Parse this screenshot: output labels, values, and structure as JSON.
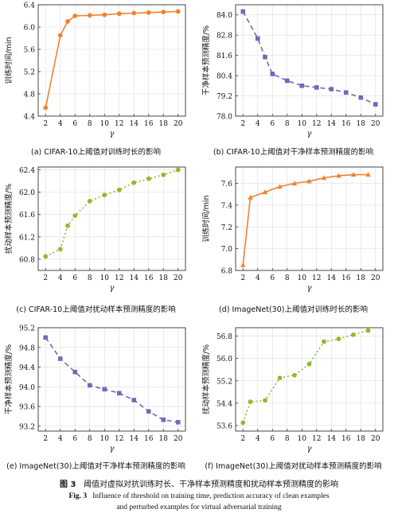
{
  "caption": {
    "cn_label": "图 3",
    "cn_text": "阈值对虚拟对抗训练时长、干净样本预测精度和扰动样本预测精度的影响",
    "en_label": "Fig. 3",
    "en_line1": "Influence of threshold on training time, prediction accuracy of clean examples",
    "en_line2": "and perturbed examples for virtual adversarial training"
  },
  "colors": {
    "orange": "#F0822F",
    "purple": "#6D6BB8",
    "green": "#8DBB2C",
    "grid": "#dddddd",
    "axis": "#333333"
  },
  "chart_data": [
    {
      "id": "a",
      "type": "line",
      "style": "solid",
      "marker": "circle",
      "color": "orange",
      "caption": "(a) CIFAR-10上阈值对训练时长的影响",
      "xlabel": "γ",
      "ylabel": "训练时间/min",
      "x": [
        2,
        4,
        5,
        6,
        8,
        10,
        12,
        14,
        16,
        18,
        20
      ],
      "y": [
        4.55,
        5.85,
        6.1,
        6.2,
        6.21,
        6.22,
        6.24,
        6.25,
        6.26,
        6.27,
        6.28
      ],
      "xlim": [
        1,
        21
      ],
      "ylim": [
        4.4,
        6.4
      ],
      "xticks": [
        "2",
        "4",
        "6",
        "8",
        "10",
        "12",
        "14",
        "16",
        "18",
        "20"
      ],
      "yticks": [
        "4.4",
        "4.8",
        "5.2",
        "5.6",
        "6.0",
        "6.4"
      ]
    },
    {
      "id": "b",
      "type": "line",
      "style": "dashed",
      "marker": "square",
      "color": "purple",
      "caption": "(b) CIFAR-10上阈值对干净样本预测精度的影响",
      "xlabel": "γ",
      "ylabel": "干净样本预测精度/%",
      "x": [
        2,
        4,
        5,
        6,
        8,
        10,
        12,
        14,
        16,
        18,
        20
      ],
      "y": [
        84.2,
        82.6,
        81.5,
        80.5,
        80.1,
        79.8,
        79.7,
        79.6,
        79.4,
        79.1,
        78.7
      ],
      "xlim": [
        1,
        21
      ],
      "ylim": [
        78.0,
        84.6
      ],
      "xticks": [
        "2",
        "4",
        "6",
        "8",
        "10",
        "12",
        "14",
        "16",
        "18",
        "20"
      ],
      "yticks": [
        "78.0",
        "79.2",
        "80.4",
        "81.6",
        "82.8",
        "84.0"
      ]
    },
    {
      "id": "c",
      "type": "line",
      "style": "dotted",
      "marker": "circle",
      "color": "green",
      "caption": "(c) CIFAR-10上阈值对扰动样本预测精度的影响",
      "xlabel": "γ",
      "ylabel": "扰动样本预测精度/%",
      "x": [
        2,
        4,
        5,
        6,
        8,
        10,
        12,
        14,
        16,
        18,
        20
      ],
      "y": [
        60.85,
        60.98,
        61.4,
        61.58,
        61.84,
        61.95,
        62.04,
        62.17,
        62.24,
        62.31,
        62.4
      ],
      "xlim": [
        1,
        21
      ],
      "ylim": [
        60.6,
        62.45
      ],
      "xticks": [
        "2",
        "4",
        "6",
        "8",
        "10",
        "12",
        "14",
        "16",
        "18",
        "20"
      ],
      "yticks": [
        "60.8",
        "61.2",
        "61.6",
        "62.0",
        "62.4"
      ]
    },
    {
      "id": "d",
      "type": "line",
      "style": "solid",
      "marker": "triangle",
      "color": "orange",
      "caption": "(d) ImageNet(30)上阈值对训练时长的影响",
      "xlabel": "γ",
      "ylabel": "训练时间/min",
      "x": [
        2,
        3,
        5,
        7,
        9,
        11,
        13,
        15,
        17,
        19
      ],
      "y": [
        6.85,
        7.47,
        7.52,
        7.57,
        7.6,
        7.62,
        7.65,
        7.67,
        7.68,
        7.68
      ],
      "xlim": [
        1,
        21
      ],
      "ylim": [
        6.8,
        7.75
      ],
      "xticks": [
        "2",
        "4",
        "6",
        "8",
        "10",
        "12",
        "14",
        "16",
        "18",
        "20"
      ],
      "yticks": [
        "6.8",
        "7.0",
        "7.2",
        "7.4",
        "7.6"
      ]
    },
    {
      "id": "e",
      "type": "line",
      "style": "dashed",
      "marker": "square",
      "color": "purple",
      "caption": "(e) ImageNet(30)上阈值对干净样本预测精度的影响",
      "xlabel": "γ",
      "ylabel": "干净样本预测精度/%",
      "x": [
        2,
        4,
        6,
        8,
        10,
        12,
        14,
        16,
        18,
        20
      ],
      "y": [
        95.0,
        94.57,
        94.3,
        94.03,
        93.95,
        93.87,
        93.73,
        93.5,
        93.33,
        93.28
      ],
      "xlim": [
        1,
        21
      ],
      "ylim": [
        93.1,
        95.2
      ],
      "xticks": [
        "2",
        "4",
        "6",
        "8",
        "10",
        "12",
        "14",
        "16",
        "18",
        "20"
      ],
      "yticks": [
        "93.2",
        "93.6",
        "94.0",
        "94.4",
        "94.8",
        "95.2"
      ]
    },
    {
      "id": "f",
      "type": "line",
      "style": "dotted",
      "marker": "circle",
      "color": "green",
      "caption": "(f) ImageNet(30)上阈值对扰动样本预测精度的影响",
      "xlabel": "γ",
      "ylabel": "扰动样本预测精度/%",
      "x": [
        2,
        3,
        5,
        7,
        9,
        11,
        13,
        15,
        17,
        19
      ],
      "y": [
        53.7,
        54.45,
        54.5,
        55.3,
        55.4,
        55.8,
        56.6,
        56.7,
        56.85,
        57.0
      ],
      "xlim": [
        1,
        21
      ],
      "ylim": [
        53.4,
        57.1
      ],
      "xticks": [
        "2",
        "4",
        "6",
        "8",
        "10",
        "12",
        "14",
        "16",
        "18",
        "20"
      ],
      "yticks": [
        "53.6",
        "54.4",
        "55.2",
        "56.0",
        "56.8"
      ]
    }
  ]
}
